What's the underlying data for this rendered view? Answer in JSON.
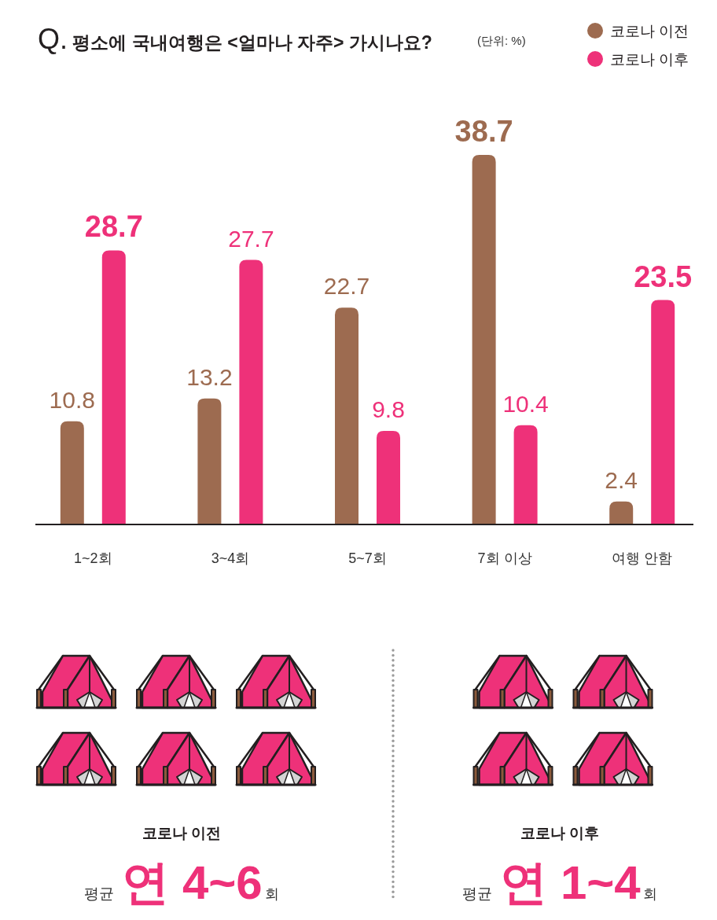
{
  "chart_data": [
    {
      "type": "bar",
      "title": "Q. 평소에 국내여행은 <얼마나 자주> 가시나요?",
      "subtitle": "(단위: %)",
      "categories": [
        "1~2회",
        "3~4회",
        "5~7회",
        "7회 이상",
        "여행 안함"
      ],
      "series": [
        {
          "name": "코로나 이전",
          "color": "#9d6b50",
          "values": [
            10.8,
            13.2,
            22.7,
            38.7,
            2.4
          ]
        },
        {
          "name": "코로나 이후",
          "color": "#ee3179",
          "values": [
            28.7,
            27.7,
            9.8,
            10.4,
            23.5
          ]
        }
      ],
      "data_labels": true,
      "legend": "top right"
    },
    {
      "type": "other",
      "title": "코로나 이전",
      "color": "#ee3179",
      "annotations": [
        "평균",
        "연 4~6",
        "회"
      ]
    },
    {
      "type": "other",
      "title": "코로나 이후",
      "color": "#ee3179",
      "annotations": [
        "평균",
        "연 1~4",
        "회"
      ]
    }
  ]
}
